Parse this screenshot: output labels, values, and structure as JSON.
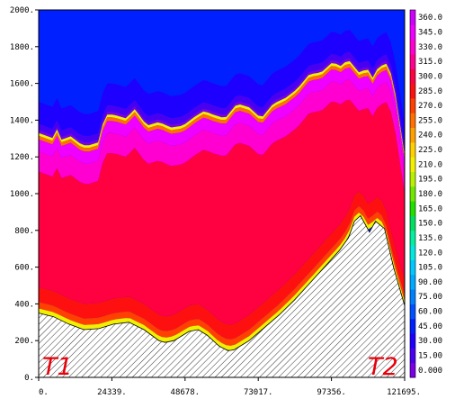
{
  "chart_data": {
    "type": "heatmap",
    "title": "",
    "xlabel": "",
    "ylabel": "",
    "xlim": [
      0,
      121695
    ],
    "ylim": [
      0,
      2000
    ],
    "x_ticks": [
      "0.",
      "24339.",
      "48678.",
      "73017.",
      "97356.",
      "121695."
    ],
    "y_ticks": [
      "0.",
      "200.",
      "400.",
      "600.",
      "800.",
      "1000.",
      "1200.",
      "1400.",
      "1600.",
      "1800.",
      "2000."
    ],
    "x_tick_values": [
      0,
      24339,
      48678,
      73017,
      97356,
      121695
    ],
    "y_tick_values": [
      0,
      200,
      400,
      600,
      800,
      1000,
      1200,
      1400,
      1600,
      1800,
      2000
    ],
    "colorbar": {
      "labels": [
        "0.000",
        "15.00",
        "30.00",
        "45.00",
        "60.00",
        "75.00",
        "90.00",
        "105.0",
        "120.0",
        "135.0",
        "150.0",
        "165.0",
        "180.0",
        "195.0",
        "210.0",
        "225.0",
        "240.0",
        "255.0",
        "270.0",
        "285.0",
        "300.0",
        "315.0",
        "330.0",
        "345.0",
        "360.0"
      ],
      "levels": [
        0,
        15,
        30,
        45,
        60,
        75,
        90,
        105,
        120,
        135,
        150,
        165,
        180,
        195,
        210,
        225,
        240,
        255,
        270,
        285,
        300,
        315,
        330,
        345,
        360
      ],
      "colors": [
        "#7a00e6",
        "#4800f0",
        "#1e00ff",
        "#0020ff",
        "#0050ff",
        "#0080ff",
        "#00a8ff",
        "#00c8ff",
        "#00e8e0",
        "#00f0a0",
        "#00e060",
        "#20e000",
        "#70e800",
        "#b8f000",
        "#f0f000",
        "#ffd000",
        "#ffa000",
        "#ff7000",
        "#ff4000",
        "#ff1010",
        "#ff0040",
        "#ff0090",
        "#ff00d0",
        "#f000ff",
        "#d000ff"
      ]
    },
    "terrain_profile": {
      "x": [
        0,
        5000,
        10000,
        15000,
        20000,
        25000,
        30000,
        35000,
        40000,
        42000,
        45000,
        50000,
        53000,
        56000,
        60000,
        63000,
        65000,
        70000,
        75000,
        80000,
        85000,
        90000,
        95000,
        100000,
        103000,
        105000,
        107000,
        110000,
        112000,
        115000,
        118000,
        121695
      ],
      "y": [
        350,
        330,
        290,
        260,
        265,
        290,
        300,
        260,
        200,
        190,
        200,
        250,
        260,
        230,
        170,
        145,
        150,
        200,
        270,
        340,
        420,
        510,
        600,
        690,
        760,
        850,
        880,
        790,
        850,
        810,
        600,
        390
      ]
    },
    "inversion_top": {
      "x": [
        0,
        5000,
        5500,
        8000,
        10000,
        14000,
        16000,
        20000,
        22000,
        25000,
        29000,
        32000,
        36000,
        40000,
        44000,
        48000,
        52000,
        55000,
        58000,
        62000,
        66000,
        70000,
        74000,
        78000,
        82000,
        86000,
        90000,
        94000,
        98000,
        100000,
        103000,
        105000,
        107000,
        109000,
        111000,
        113000,
        116000,
        118000,
        121695
      ],
      "y": [
        1320,
        1290,
        1360,
        1270,
        1310,
        1260,
        1250,
        1270,
        1420,
        1420,
        1400,
        1450,
        1360,
        1380,
        1350,
        1360,
        1410,
        1440,
        1420,
        1400,
        1480,
        1460,
        1400,
        1480,
        1510,
        1560,
        1640,
        1650,
        1710,
        1680,
        1720,
        1680,
        1640,
        1680,
        1620,
        1680,
        1700,
        1600,
        1200
      ]
    },
    "annotations": [
      "T1",
      "T2"
    ]
  }
}
